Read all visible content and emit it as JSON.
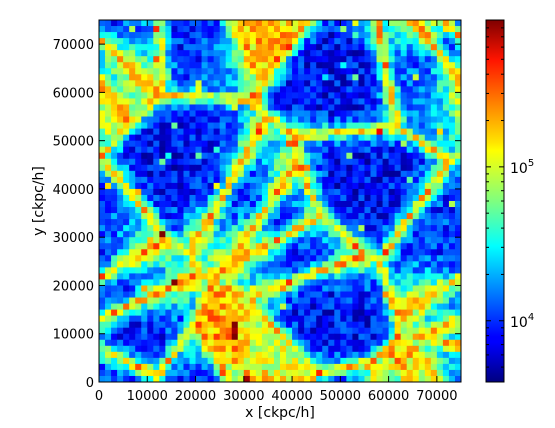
{
  "chart_data": {
    "type": "heatmap",
    "title": "",
    "xlabel": "x [ckpc/h]",
    "ylabel": "y [ckpc/h]",
    "xlim": [
      0,
      75000
    ],
    "ylim": [
      0,
      75000
    ],
    "x_ticks": [
      0,
      10000,
      20000,
      30000,
      40000,
      50000,
      60000,
      70000
    ],
    "y_ticks": [
      0,
      10000,
      20000,
      30000,
      40000,
      50000,
      60000,
      70000
    ],
    "grid": false,
    "colormap": "jet",
    "colorbar": {
      "scale": "log",
      "vmin": 4000,
      "vmax": 900000,
      "ticks": [
        {
          "value": 10000,
          "base": "10",
          "exp": "4"
        },
        {
          "value": 100000,
          "base": "10",
          "exp": "5"
        }
      ]
    },
    "bins": [
      60,
      60
    ],
    "description_of_values": "2D histogram of particle density; values range ~4e3 to ~9e5 on a log colour scale, showing a cosmic-web filament pattern"
  }
}
